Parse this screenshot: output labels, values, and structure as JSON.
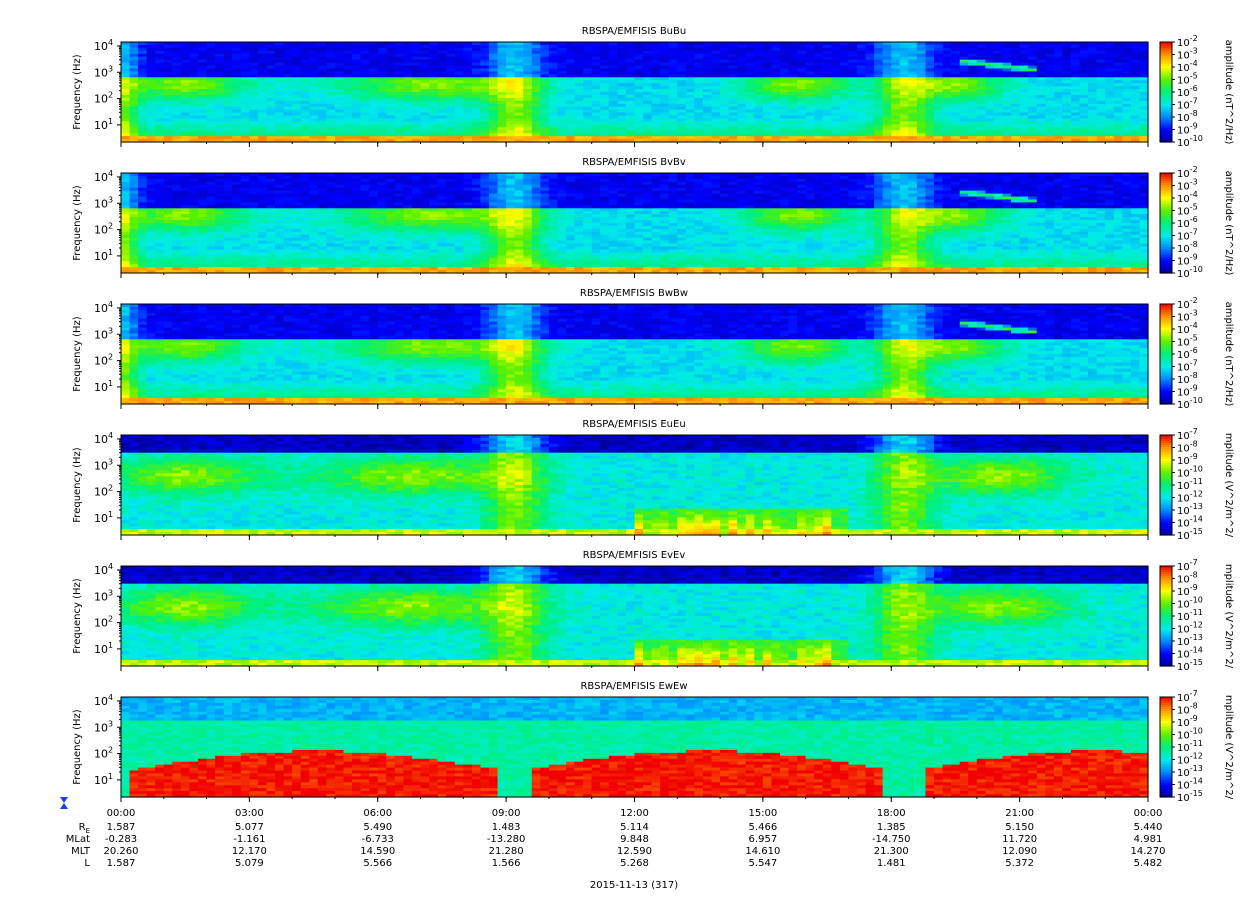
{
  "chart_data": {
    "type": "heatmap",
    "date_label": "2015-11-13 (317)",
    "x_ticks": [
      "00:00",
      "03:00",
      "06:00",
      "09:00",
      "12:00",
      "15:00",
      "18:00",
      "21:00",
      "00:00"
    ],
    "ephemeris": {
      "labels": {
        "re_main": "R",
        "re_sub": "E",
        "mlat": "MLat",
        "mlt": "MLT",
        "l": "L"
      },
      "rows": [
        {
          "key": "re",
          "values": [
            "1.587",
            "5.077",
            "5.490",
            "1.483",
            "5.114",
            "5.466",
            "1.385",
            "5.150",
            "5.440"
          ]
        },
        {
          "key": "mlat",
          "values": [
            "-0.283",
            "-1.161",
            "-6.733",
            "-13.280",
            "9.848",
            "6.957",
            "-14.750",
            "11.720",
            "4.981"
          ]
        },
        {
          "key": "mlt",
          "values": [
            "20.260",
            "12.170",
            "14.590",
            "21.280",
            "12.590",
            "14.610",
            "21.300",
            "12.090",
            "14.270"
          ]
        },
        {
          "key": "l",
          "values": [
            "1.587",
            "5.079",
            "5.566",
            "1.566",
            "5.268",
            "5.547",
            "1.481",
            "5.372",
            "5.482"
          ]
        }
      ]
    },
    "y_ticks": [
      {
        "m": "10",
        "e": "1",
        "v": 1
      },
      {
        "m": "10",
        "e": "2",
        "v": 2
      },
      {
        "m": "10",
        "e": "3",
        "v": 3
      },
      {
        "m": "10",
        "e": "4",
        "v": 4
      }
    ],
    "panels": [
      {
        "title": "RBSPA/EMFISIS  BuBu",
        "ylabel": "Frequency (Hz)",
        "zlabel": "amplitude (nT^2/Hz)",
        "kind": "B",
        "cbar": [
          "10",
          "-2",
          "10",
          "-3",
          "10",
          "-4",
          "10",
          "-5",
          "10",
          "-6",
          "10",
          "-7",
          "10",
          "-8",
          "10",
          "-9",
          "10",
          "-10"
        ]
      },
      {
        "title": "RBSPA/EMFISIS  BvBv",
        "ylabel": "Frequency (Hz)",
        "zlabel": "amplitude (nT^2/Hz)",
        "kind": "B",
        "cbar": [
          "10",
          "-2",
          "10",
          "-3",
          "10",
          "-4",
          "10",
          "-5",
          "10",
          "-6",
          "10",
          "-7",
          "10",
          "-8",
          "10",
          "-9",
          "10",
          "-10"
        ]
      },
      {
        "title": "RBSPA/EMFISIS  BwBw",
        "ylabel": "Frequency (Hz)",
        "zlabel": "amplitude (nT^2/Hz)",
        "kind": "B",
        "cbar": [
          "10",
          "-2",
          "10",
          "-3",
          "10",
          "-4",
          "10",
          "-5",
          "10",
          "-6",
          "10",
          "-7",
          "10",
          "-8",
          "10",
          "-9",
          "10",
          "-10"
        ]
      },
      {
        "title": "RBSPA/EMFISIS  EuEu",
        "ylabel": "Frequency (Hz)",
        "zlabel": "mplitude (V^2/m^2/",
        "kind": "E",
        "cbar": [
          "10",
          "-7",
          "10",
          "-8",
          "10",
          "-9",
          "10",
          "-10",
          "10",
          "-11",
          "10",
          "-12",
          "10",
          "-13",
          "10",
          "-14",
          "10",
          "-15"
        ]
      },
      {
        "title": "RBSPA/EMFISIS  EvEv",
        "ylabel": "Frequency (Hz)",
        "zlabel": "mplitude (V^2/m^2/",
        "kind": "E",
        "cbar": [
          "10",
          "-7",
          "10",
          "-8",
          "10",
          "-9",
          "10",
          "-10",
          "10",
          "-11",
          "10",
          "-12",
          "10",
          "-13",
          "10",
          "-14",
          "10",
          "-15"
        ]
      },
      {
        "title": "RBSPA/EMFISIS  EwEw",
        "ylabel": "Frequency (Hz)",
        "zlabel": "mplitude (V^2/m^2/",
        "kind": "Ew",
        "cbar": [
          "10",
          "-7",
          "10",
          "-8",
          "10",
          "-9",
          "10",
          "-10",
          "10",
          "-11",
          "10",
          "-12",
          "10",
          "-13",
          "10",
          "-14",
          "10",
          "-15"
        ]
      }
    ]
  }
}
